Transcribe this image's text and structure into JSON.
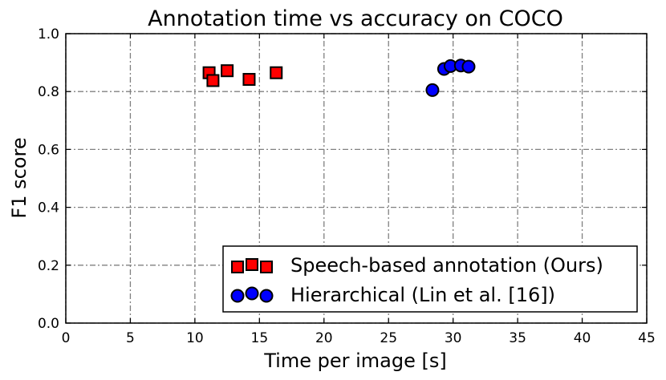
{
  "chart_data": {
    "type": "scatter",
    "title": "Annotation time vs accuracy on COCO",
    "xlabel": "Time per image [s]",
    "ylabel": "F1 score",
    "xlim": [
      0,
      45
    ],
    "ylim": [
      0.0,
      1.0
    ],
    "xticks": [
      0,
      5,
      10,
      15,
      20,
      25,
      30,
      35,
      40,
      45
    ],
    "xtick_labels": [
      "0",
      "5",
      "10",
      "15",
      "20",
      "25",
      "30",
      "35",
      "40",
      "45"
    ],
    "yticks": [
      0.0,
      0.2,
      0.4,
      0.6,
      0.8,
      1.0
    ],
    "ytick_labels": [
      "0.0",
      "0.2",
      "0.4",
      "0.6",
      "0.8",
      "1.0"
    ],
    "grid": true,
    "legend_position": "lower-right",
    "series": [
      {
        "name": "Speech-based annotation (Ours)",
        "marker": "square",
        "color": "#ff0000",
        "points": [
          {
            "x": 11.1,
            "y": 0.865
          },
          {
            "x": 11.4,
            "y": 0.838
          },
          {
            "x": 12.5,
            "y": 0.872
          },
          {
            "x": 14.2,
            "y": 0.842
          },
          {
            "x": 16.3,
            "y": 0.865
          }
        ]
      },
      {
        "name": "Hierarchical (Lin et al. [16])",
        "marker": "circle",
        "color": "#0000ff",
        "points": [
          {
            "x": 28.4,
            "y": 0.805
          },
          {
            "x": 29.3,
            "y": 0.878
          },
          {
            "x": 29.8,
            "y": 0.888
          },
          {
            "x": 30.6,
            "y": 0.89
          },
          {
            "x": 31.2,
            "y": 0.886
          }
        ]
      }
    ]
  }
}
